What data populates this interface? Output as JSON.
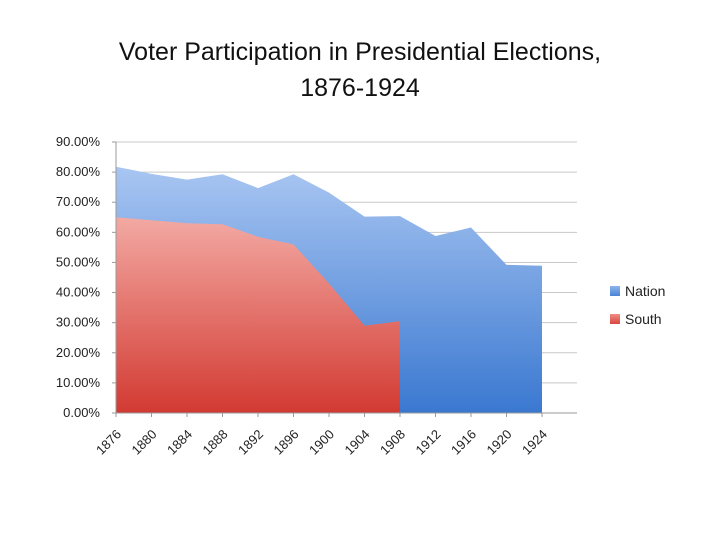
{
  "chart_data": {
    "type": "area",
    "title": [
      "Voter Participation in Presidential Elections,",
      "1876-1924"
    ],
    "xlabel": "",
    "ylabel": "",
    "ylim": [
      0,
      90
    ],
    "y_ticks": [
      0,
      10,
      20,
      30,
      40,
      50,
      60,
      70,
      80,
      90
    ],
    "y_tick_labels": [
      "0.00%",
      "10.00%",
      "20.00%",
      "30.00%",
      "40.00%",
      "50.00%",
      "60.00%",
      "70.00%",
      "80.00%",
      "90.00%"
    ],
    "categories": [
      "1876",
      "1880",
      "1884",
      "1888",
      "1892",
      "1896",
      "1900",
      "1904",
      "1908",
      "1912",
      "1916",
      "1920",
      "1924"
    ],
    "grid": true,
    "legend_position": "right",
    "series": [
      {
        "name": "Nation",
        "color": "#5b8fd9",
        "values": [
          81.8,
          79.4,
          77.5,
          79.3,
          74.7,
          79.3,
          73.2,
          65.2,
          65.4,
          58.8,
          61.6,
          49.2,
          48.9
        ]
      },
      {
        "name": "South",
        "color": "#e05a52",
        "values": [
          65.0,
          64.0,
          63.0,
          62.7,
          58.5,
          56.0,
          43.0,
          29.0,
          30.5,
          null,
          null,
          null,
          null
        ]
      }
    ]
  }
}
